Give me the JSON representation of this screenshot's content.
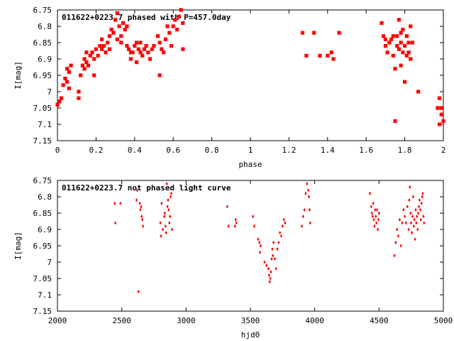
{
  "chart_data": [
    {
      "type": "scatter",
      "title": "011622+0223.7 phased with P=457.0day",
      "xlabel": "phase",
      "ylabel": "I[mag]",
      "xlim": [
        0,
        2
      ],
      "ylim": [
        6.75,
        7.15
      ],
      "y_inverted": true,
      "xticks": [
        0,
        0.2,
        0.4,
        0.6,
        0.8,
        1,
        1.2,
        1.4,
        1.6,
        1.8,
        2
      ],
      "xtick_labels": [
        "0",
        "0.2",
        "0.4",
        "0.6",
        "0.8",
        "1",
        "1.2",
        "1.4",
        "1.6",
        "1.8",
        "2"
      ],
      "yticks": [
        6.75,
        6.8,
        6.85,
        6.9,
        6.95,
        7,
        7.05,
        7.1,
        7.15
      ],
      "ytick_labels": [
        "6.75",
        "6.8",
        "6.85",
        "6.9",
        "6.95",
        "7",
        "7.05",
        "7.1",
        "7.15"
      ],
      "grid": false,
      "color": "#ff0000",
      "marker": "filled-square",
      "series": [
        {
          "points": [
            [
              0.0,
              7.04
            ],
            [
              0.01,
              7.03
            ],
            [
              0.02,
              7.02
            ],
            [
              0.03,
              6.98
            ],
            [
              0.04,
              6.96
            ],
            [
              0.05,
              6.97
            ],
            [
              0.05,
              6.93
            ],
            [
              0.06,
              6.94
            ],
            [
              0.07,
              6.92
            ],
            [
              0.06,
              6.99
            ],
            [
              0.11,
              7.02
            ],
            [
              0.11,
              7.0
            ],
            [
              0.12,
              6.95
            ],
            [
              0.13,
              6.92
            ],
            [
              0.14,
              6.9
            ],
            [
              0.14,
              6.93
            ],
            [
              0.15,
              6.88
            ],
            [
              0.15,
              6.91
            ],
            [
              0.16,
              6.92
            ],
            [
              0.17,
              6.89
            ],
            [
              0.18,
              6.88
            ],
            [
              0.19,
              6.9
            ],
            [
              0.19,
              6.95
            ],
            [
              0.2,
              6.87
            ],
            [
              0.21,
              6.89
            ],
            [
              0.22,
              6.86
            ],
            [
              0.23,
              6.87
            ],
            [
              0.23,
              6.84
            ],
            [
              0.24,
              6.86
            ],
            [
              0.25,
              6.88
            ],
            [
              0.26,
              6.85
            ],
            [
              0.27,
              6.83
            ],
            [
              0.27,
              6.87
            ],
            [
              0.28,
              6.81
            ],
            [
              0.29,
              6.82
            ],
            [
              0.3,
              6.78
            ],
            [
              0.31,
              6.76
            ],
            [
              0.31,
              6.84
            ],
            [
              0.32,
              6.8
            ],
            [
              0.33,
              6.85
            ],
            [
              0.33,
              6.83
            ],
            [
              0.34,
              6.79
            ],
            [
              0.35,
              6.81
            ],
            [
              0.36,
              6.8
            ],
            [
              0.36,
              6.86
            ],
            [
              0.37,
              6.87
            ],
            [
              0.38,
              6.9
            ],
            [
              0.38,
              6.88
            ],
            [
              0.39,
              6.88
            ],
            [
              0.4,
              6.86
            ],
            [
              0.41,
              6.85
            ],
            [
              0.41,
              6.91
            ],
            [
              0.42,
              6.87
            ],
            [
              0.43,
              6.88
            ],
            [
              0.43,
              6.85
            ],
            [
              0.44,
              6.89
            ],
            [
              0.45,
              6.87
            ],
            [
              0.46,
              6.86
            ],
            [
              0.47,
              6.88
            ],
            [
              0.48,
              6.9
            ],
            [
              0.49,
              6.87
            ],
            [
              0.5,
              6.86
            ],
            [
              0.52,
              6.83
            ],
            [
              0.53,
              6.85
            ],
            [
              0.53,
              6.95
            ],
            [
              0.54,
              6.87
            ],
            [
              0.55,
              6.88
            ],
            [
              0.56,
              6.84
            ],
            [
              0.57,
              6.8
            ],
            [
              0.58,
              6.82
            ],
            [
              0.59,
              6.86
            ],
            [
              0.6,
              6.8
            ],
            [
              0.61,
              6.78
            ],
            [
              0.62,
              6.81
            ],
            [
              0.63,
              6.77
            ],
            [
              0.64,
              6.75
            ],
            [
              0.65,
              6.79
            ],
            [
              0.65,
              6.87
            ],
            [
              1.27,
              6.82
            ],
            [
              1.29,
              6.89
            ],
            [
              1.33,
              6.82
            ],
            [
              1.36,
              6.89
            ],
            [
              1.4,
              6.89
            ],
            [
              1.42,
              6.88
            ],
            [
              1.43,
              6.9
            ],
            [
              1.46,
              6.82
            ],
            [
              1.68,
              6.79
            ],
            [
              1.69,
              6.83
            ],
            [
              1.7,
              6.84
            ],
            [
              1.7,
              6.86
            ],
            [
              1.71,
              6.88
            ],
            [
              1.72,
              6.85
            ],
            [
              1.73,
              6.84
            ],
            [
              1.74,
              6.83
            ],
            [
              1.74,
              6.89
            ],
            [
              1.75,
              6.93
            ],
            [
              1.75,
              7.09
            ],
            [
              1.76,
              6.83
            ],
            [
              1.76,
              6.86
            ],
            [
              1.77,
              6.78
            ],
            [
              1.77,
              6.87
            ],
            [
              1.78,
              6.82
            ],
            [
              1.78,
              6.85
            ],
            [
              1.78,
              6.92
            ],
            [
              1.79,
              6.81
            ],
            [
              1.79,
              6.88
            ],
            [
              1.8,
              6.97
            ],
            [
              1.8,
              6.86
            ],
            [
              1.81,
              6.83
            ],
            [
              1.81,
              6.89
            ],
            [
              1.82,
              6.85
            ],
            [
              1.82,
              6.88
            ],
            [
              1.83,
              6.8
            ],
            [
              1.83,
              6.9
            ],
            [
              1.84,
              6.85
            ],
            [
              1.87,
              7.0
            ],
            [
              1.97,
              7.05
            ],
            [
              1.98,
              7.02
            ],
            [
              1.98,
              7.1
            ],
            [
              1.99,
              7.07
            ],
            [
              1.99,
              7.05
            ],
            [
              2.0,
              7.09
            ]
          ]
        }
      ]
    },
    {
      "type": "scatter",
      "title": "011622+0223.7 not phased light curve",
      "xlabel": "hjd0",
      "ylabel": "I[mag]",
      "xlim": [
        2000,
        5000
      ],
      "ylim": [
        6.75,
        7.15
      ],
      "y_inverted": true,
      "xticks": [
        2000,
        2500,
        3000,
        3500,
        4000,
        4500,
        5000
      ],
      "xtick_labels": [
        "2000",
        "2500",
        "3000",
        "3500",
        "4000",
        "4500",
        "5000"
      ],
      "yticks": [
        6.75,
        6.8,
        6.85,
        6.9,
        6.95,
        7,
        7.05,
        7.1,
        7.15
      ],
      "ytick_labels": [
        "6.75",
        "6.8",
        "6.85",
        "6.9",
        "6.95",
        "7",
        "7.05",
        "7.1",
        "7.15"
      ],
      "grid": false,
      "color": "#ff0000",
      "marker": "diamond",
      "series": [
        {
          "points": [
            [
              2445,
              6.82
            ],
            [
              2450,
              6.88
            ],
            [
              2490,
              6.82
            ],
            [
              2615,
              6.81
            ],
            [
              2620,
              6.78
            ],
            [
              2630,
              7.09
            ],
            [
              2640,
              6.82
            ],
            [
              2645,
              6.84
            ],
            [
              2650,
              6.83
            ],
            [
              2655,
              6.86
            ],
            [
              2660,
              6.87
            ],
            [
              2665,
              6.89
            ],
            [
              2800,
              6.88
            ],
            [
              2805,
              6.92
            ],
            [
              2810,
              6.82
            ],
            [
              2820,
              6.9
            ],
            [
              2830,
              6.86
            ],
            [
              2835,
              6.85
            ],
            [
              2840,
              6.89
            ],
            [
              2845,
              6.91
            ],
            [
              2850,
              6.76
            ],
            [
              2855,
              6.83
            ],
            [
              2860,
              6.81
            ],
            [
              2865,
              6.84
            ],
            [
              2870,
              6.88
            ],
            [
              2875,
              6.86
            ],
            [
              2880,
              6.8
            ],
            [
              2885,
              6.79
            ],
            [
              2890,
              6.9
            ],
            [
              3320,
              6.83
            ],
            [
              3330,
              6.89
            ],
            [
              3380,
              6.89
            ],
            [
              3385,
              6.87
            ],
            [
              3390,
              6.88
            ],
            [
              3520,
              6.86
            ],
            [
              3530,
              6.89
            ],
            [
              3560,
              6.93
            ],
            [
              3570,
              6.94
            ],
            [
              3575,
              6.97
            ],
            [
              3580,
              6.95
            ],
            [
              3610,
              7.0
            ],
            [
              3625,
              7.01
            ],
            [
              3640,
              7.02
            ],
            [
              3645,
              7.04
            ],
            [
              3650,
              7.06
            ],
            [
              3655,
              7.05
            ],
            [
              3660,
              7.03
            ],
            [
              3665,
              6.99
            ],
            [
              3670,
              6.96
            ],
            [
              3675,
              6.98
            ],
            [
              3680,
              6.94
            ],
            [
              3690,
              6.99
            ],
            [
              3700,
              7.02
            ],
            [
              3710,
              6.96
            ],
            [
              3720,
              6.94
            ],
            [
              3730,
              6.91
            ],
            [
              3740,
              6.92
            ],
            [
              3750,
              6.89
            ],
            [
              3760,
              6.87
            ],
            [
              3770,
              6.88
            ],
            [
              3900,
              6.89
            ],
            [
              3910,
              6.86
            ],
            [
              3920,
              6.84
            ],
            [
              3930,
              6.79
            ],
            [
              3940,
              6.76
            ],
            [
              3950,
              6.78
            ],
            [
              3955,
              6.8
            ],
            [
              3960,
              6.84
            ],
            [
              3965,
              6.88
            ],
            [
              4430,
              6.79
            ],
            [
              4440,
              6.83
            ],
            [
              4445,
              6.85
            ],
            [
              4450,
              6.86
            ],
            [
              4455,
              6.82
            ],
            [
              4460,
              6.87
            ],
            [
              4465,
              6.89
            ],
            [
              4470,
              6.84
            ],
            [
              4475,
              6.86
            ],
            [
              4480,
              6.88
            ],
            [
              4485,
              6.84
            ],
            [
              4490,
              6.9
            ],
            [
              4495,
              6.87
            ],
            [
              4500,
              6.85
            ],
            [
              4620,
              6.98
            ],
            [
              4630,
              6.94
            ],
            [
              4640,
              6.9
            ],
            [
              4650,
              6.92
            ],
            [
              4660,
              6.87
            ],
            [
              4670,
              6.95
            ],
            [
              4680,
              6.88
            ],
            [
              4690,
              6.84
            ],
            [
              4700,
              6.86
            ],
            [
              4710,
              6.88
            ],
            [
              4720,
              6.83
            ],
            [
              4730,
              6.9
            ],
            [
              4735,
              6.81
            ],
            [
              4740,
              6.77
            ],
            [
              4745,
              6.85
            ],
            [
              4750,
              6.88
            ],
            [
              4755,
              6.91
            ],
            [
              4760,
              6.86
            ],
            [
              4765,
              6.8
            ],
            [
              4770,
              6.89
            ],
            [
              4775,
              6.87
            ],
            [
              4780,
              6.93
            ],
            [
              4785,
              6.84
            ],
            [
              4790,
              6.88
            ],
            [
              4795,
              6.86
            ],
            [
              4800,
              6.9
            ],
            [
              4805,
              6.85
            ],
            [
              4810,
              6.83
            ],
            [
              4815,
              6.81
            ],
            [
              4820,
              6.84
            ],
            [
              4825,
              6.87
            ],
            [
              4830,
              6.82
            ],
            [
              4835,
              6.8
            ],
            [
              4840,
              6.79
            ],
            [
              4845,
              6.86
            ],
            [
              4850,
              6.88
            ]
          ]
        }
      ]
    }
  ]
}
